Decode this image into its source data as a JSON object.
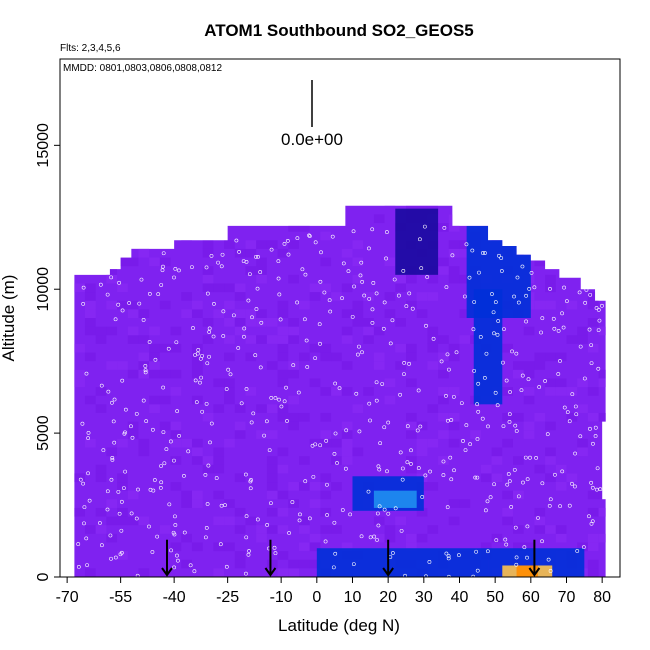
{
  "chart_data": {
    "type": "heatmap",
    "title": "ATOM1 Southbound SO2_GEOS5",
    "subtitle_flights": "Flts: 2,3,4,5,6",
    "subtitle_dates": "MMDD: 0801,0803,0806,0808,0812",
    "xlabel": "Latitude (deg N)",
    "ylabel": "Altitude (m)",
    "xlim": [
      -72,
      85
    ],
    "ylim": [
      0,
      18000
    ],
    "x_ticks": [
      -70,
      -55,
      -40,
      -25,
      -10,
      0,
      10,
      20,
      30,
      40,
      50,
      60,
      70,
      80
    ],
    "y_ticks": [
      0,
      5000,
      10000,
      15000
    ],
    "scale_marker_label": "0.0e+00",
    "colormap": [
      "#7f22f0",
      "#6a1ce0",
      "#4010c0",
      "#1a0aa0",
      "#0030d8",
      "#1f8ff0",
      "#7fd8ff",
      "#f5f5ff",
      "#ffc34a",
      "#ff8c00"
    ],
    "background_color": "#7f22f0",
    "envelope_top_altitude_by_lat": [
      [
        -68,
        10500
      ],
      [
        -62,
        10500
      ],
      [
        -58,
        10700
      ],
      [
        -55,
        11100
      ],
      [
        -52,
        11400
      ],
      [
        -40,
        11700
      ],
      [
        -25,
        12200
      ],
      [
        -15,
        12200
      ],
      [
        0,
        12200
      ],
      [
        8,
        12900
      ],
      [
        26,
        12900
      ],
      [
        38,
        12200
      ],
      [
        48,
        11700
      ],
      [
        52,
        11500
      ],
      [
        56,
        11200
      ],
      [
        60,
        11000
      ],
      [
        64,
        10700
      ],
      [
        68,
        10400
      ],
      [
        74,
        10000
      ],
      [
        78,
        9600
      ],
      [
        81,
        9000
      ]
    ],
    "envelope_bottom_altitude_by_lat": [
      [
        -68,
        0
      ],
      [
        81,
        0
      ]
    ],
    "envelope_right_profile": [
      [
        81,
        9000
      ],
      [
        81,
        5400
      ],
      [
        80,
        5400
      ],
      [
        80,
        2700
      ],
      [
        81,
        2700
      ],
      [
        81,
        0
      ]
    ],
    "features": [
      {
        "name": "upper-plume-central",
        "lat_range": [
          22,
          34
        ],
        "alt_range": [
          10500,
          12800
        ],
        "level": 0.35
      },
      {
        "name": "upper-plume-north",
        "lat_range": [
          42,
          60
        ],
        "alt_range": [
          9000,
          12200
        ],
        "level": 0.45
      },
      {
        "name": "column-north",
        "lat_range": [
          44,
          52
        ],
        "alt_range": [
          6000,
          10000
        ],
        "level": 0.45
      },
      {
        "name": "mid-blob",
        "lat_range": [
          10,
          30
        ],
        "alt_range": [
          2300,
          3500
        ],
        "level": 0.45
      },
      {
        "name": "mid-blob-core",
        "lat_range": [
          16,
          28
        ],
        "alt_range": [
          2400,
          3000
        ],
        "level": 0.6
      },
      {
        "name": "boundary-layer-tropics",
        "lat_range": [
          0,
          48
        ],
        "alt_range": [
          0,
          1000
        ],
        "level": 0.4
      },
      {
        "name": "boundary-layer-north",
        "lat_range": [
          48,
          75
        ],
        "alt_range": [
          0,
          1000
        ],
        "level": 0.45
      },
      {
        "name": "hotspot-north",
        "lat_range": [
          52,
          66
        ],
        "alt_range": [
          0,
          400
        ],
        "level": 0.9
      },
      {
        "name": "hotspot-north-core",
        "lat_range": [
          56,
          62
        ],
        "alt_range": [
          0,
          400
        ],
        "level": 1.0
      }
    ],
    "arrow_markers_latitude": [
      -42,
      -13,
      20,
      61
    ]
  }
}
